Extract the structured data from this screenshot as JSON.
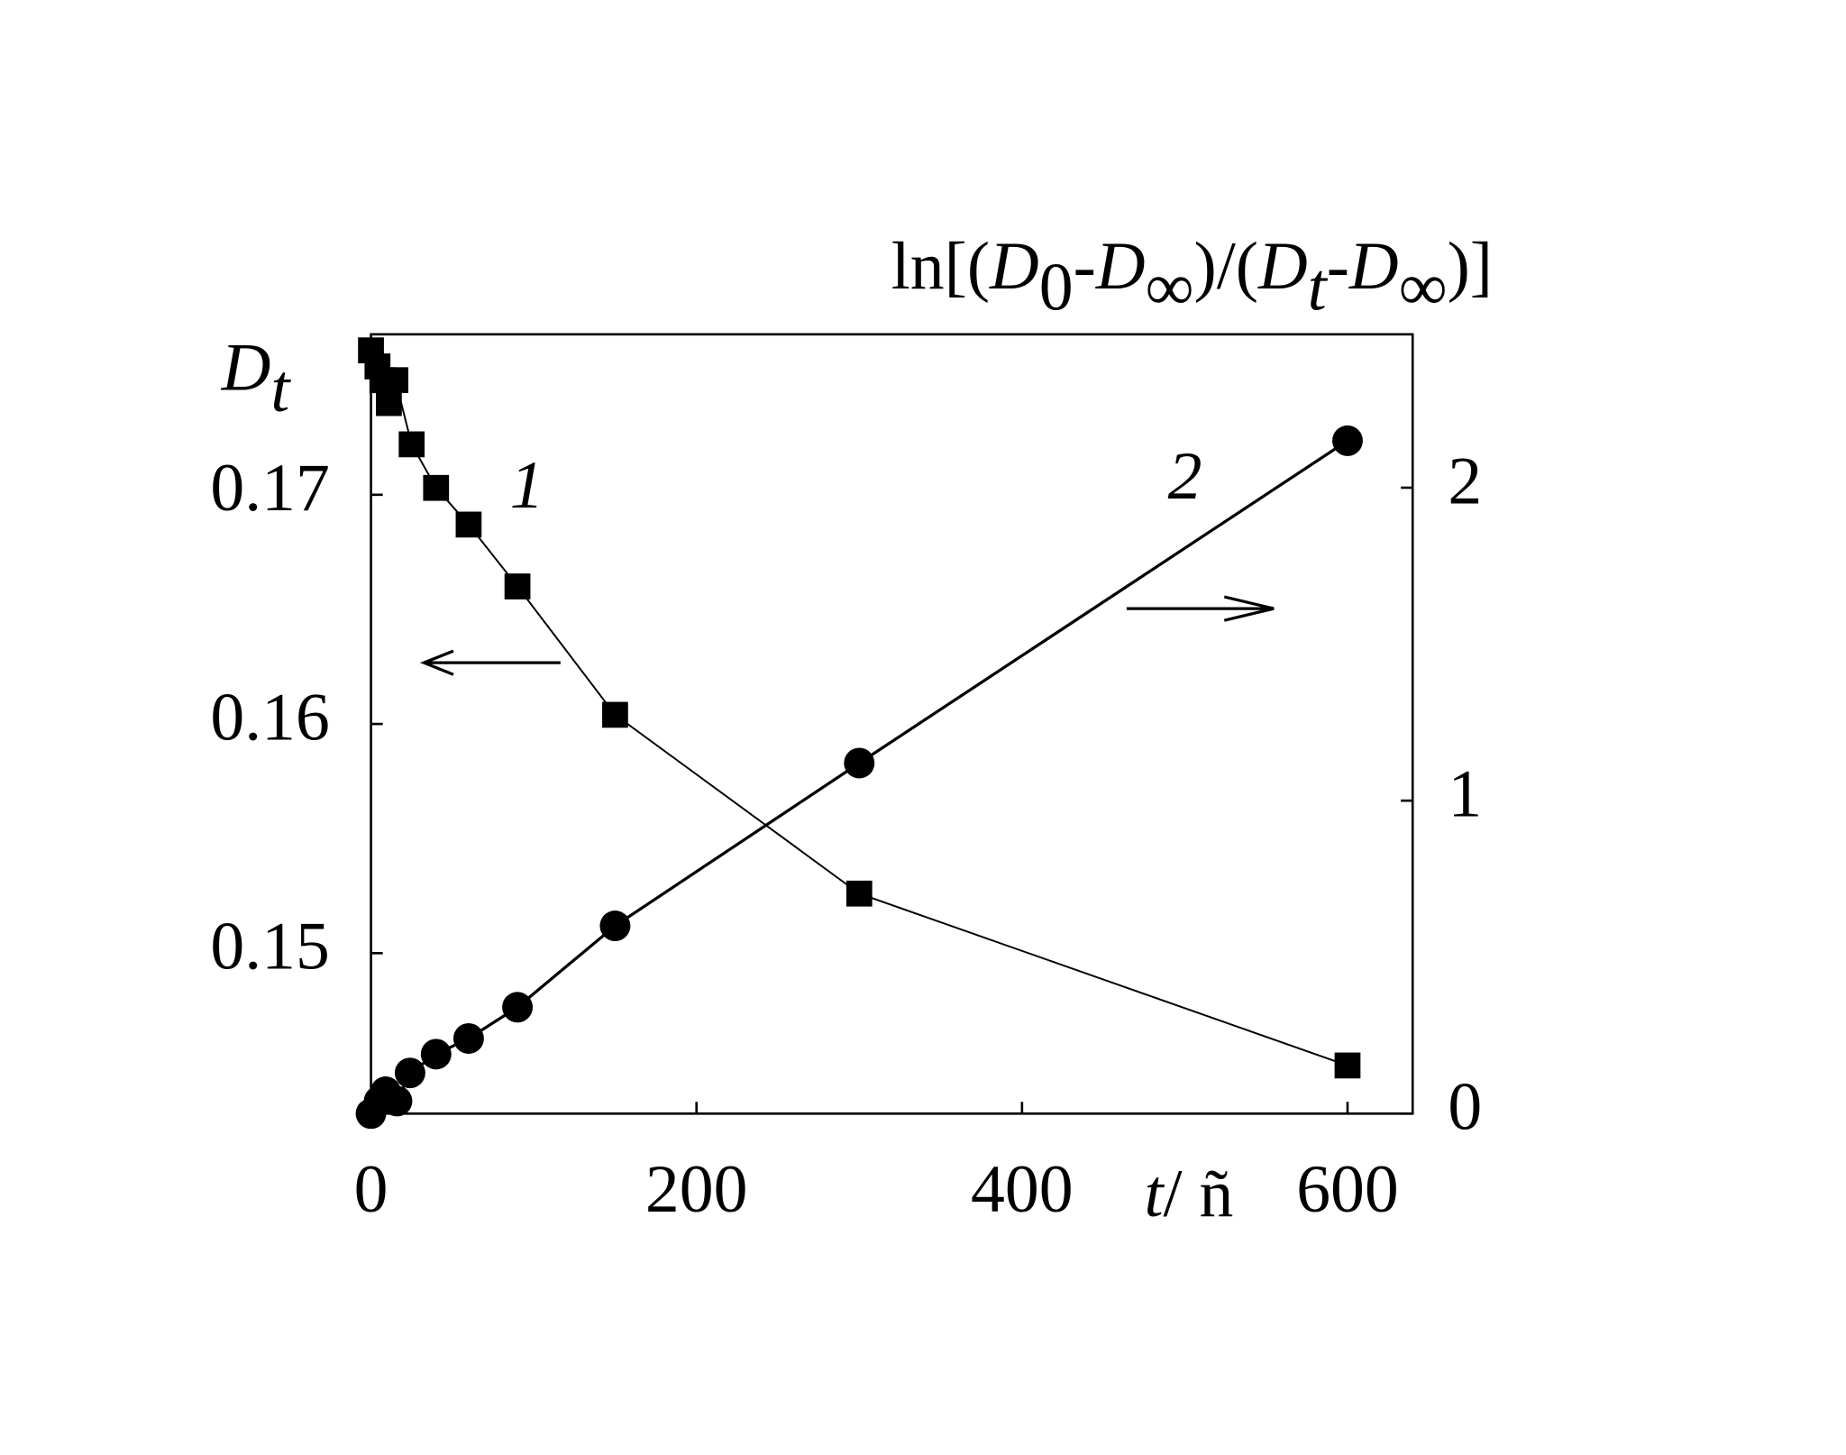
{
  "chart_data": {
    "type": "scatter",
    "ylabel": [
      "D",
      "t"
    ],
    "y2label": [
      "ln[(",
      "D",
      "0",
      "-",
      "D",
      "∞",
      ")/(",
      "D",
      "t",
      "-",
      "D",
      "∞",
      ")]"
    ],
    "xlabel": [
      "t",
      "/ ñ"
    ],
    "xlim": [
      0,
      640
    ],
    "xticks": [
      0,
      200,
      400,
      600
    ],
    "ylim": [
      0.143,
      0.177
    ],
    "yticks": [
      0.15,
      0.16,
      0.17
    ],
    "y2lim": [
      0,
      2.49
    ],
    "y2ticks": [
      0,
      1,
      2
    ],
    "series": [
      {
        "name": "1",
        "marker": "square",
        "color": "#000000",
        "x": [
          0,
          4,
          7,
          11,
          15,
          25,
          40,
          60,
          90,
          150,
          300,
          600
        ],
        "values": [
          0.1763,
          0.1756,
          0.175,
          0.174,
          0.175,
          0.1722,
          0.1703,
          0.1687,
          0.166,
          0.1604,
          0.1526,
          0.1451
        ]
      },
      {
        "name": "2",
        "marker": "circle",
        "color": "#000000",
        "axis": "y2",
        "x": [
          0,
          5,
          9,
          16,
          24,
          40,
          60,
          90,
          150,
          300,
          600
        ],
        "values": [
          0,
          0.04,
          0.07,
          0.04,
          0.13,
          0.19,
          0.24,
          0.34,
          0.6,
          1.12,
          2.15
        ]
      }
    ]
  }
}
